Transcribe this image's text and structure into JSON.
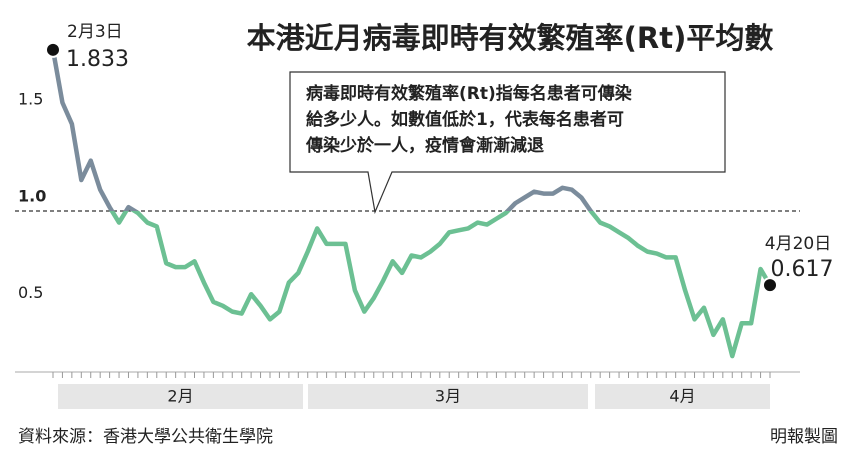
{
  "chart_data": {
    "type": "line",
    "title": "本港近月病毒即時有效繁殖率(Rt)平均數",
    "note_lines": [
      "病毒即時有效繁殖率(Rt)指每名患者可傳染",
      "給多少人。如數值低於1，代表每名患者可",
      "傳染少於一人，疫情會漸漸減退"
    ],
    "source": "資料來源：香港大學公共衛生學院",
    "credit": "明報製圖",
    "months": [
      "2月",
      "3月",
      "4月"
    ],
    "values": [
      1.833,
      1.56,
      1.45,
      1.16,
      1.26,
      1.11,
      1.02,
      0.94,
      1.02,
      0.99,
      0.94,
      0.92,
      0.73,
      0.71,
      0.71,
      0.74,
      0.63,
      0.53,
      0.51,
      0.48,
      0.47,
      0.57,
      0.51,
      0.44,
      0.48,
      0.63,
      0.68,
      0.79,
      0.91,
      0.83,
      0.83,
      0.83,
      0.59,
      0.48,
      0.55,
      0.64,
      0.74,
      0.68,
      0.77,
      0.76,
      0.79,
      0.83,
      0.89,
      0.9,
      0.91,
      0.94,
      0.93,
      0.96,
      0.99,
      1.04,
      1.07,
      1.1,
      1.09,
      1.09,
      1.12,
      1.11,
      1.07,
      1.0,
      0.94,
      0.92,
      0.89,
      0.86,
      0.82,
      0.79,
      0.78,
      0.76,
      0.76,
      0.59,
      0.44,
      0.5,
      0.36,
      0.44,
      0.25,
      0.42,
      0.42,
      0.7,
      0.617
    ],
    "annotations": [
      {
        "date": "2月3日",
        "value_label": "1.833"
      },
      {
        "date": "4月20日",
        "value_label": "0.617"
      }
    ],
    "threshold": 1,
    "color_above": "#7b8c9c",
    "color_below": "#6cc093",
    "ylim": [
      0.17,
      2.0
    ],
    "yticks": [
      {
        "value": 1.5,
        "label": "1.5"
      },
      {
        "value": 1,
        "label": "1.0"
      },
      {
        "value": 0.5,
        "label": "0.5"
      }
    ]
  }
}
